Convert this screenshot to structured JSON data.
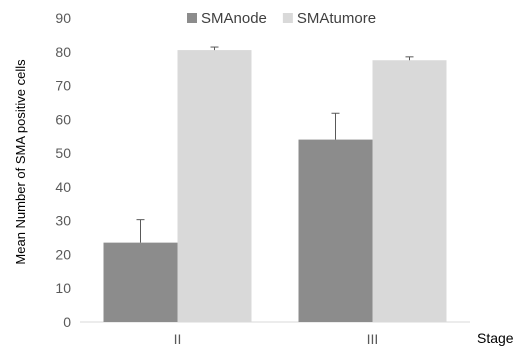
{
  "chart_data": {
    "type": "bar",
    "categories": [
      "II",
      "III"
    ],
    "series": [
      {
        "name": "SMAnode",
        "values": [
          23.5,
          54
        ],
        "errors": [
          6.8,
          7.8
        ],
        "color": "#8c8c8c"
      },
      {
        "name": "SMAtumore",
        "values": [
          80.5,
          77.5
        ],
        "errors": [
          0.9,
          1.0
        ],
        "color": "#d9d9d9"
      }
    ],
    "ylim": [
      0,
      90
    ],
    "yticks": [
      0,
      10,
      20,
      30,
      40,
      50,
      60,
      70,
      80,
      90
    ],
    "ylabel": "Mean Number of SMA positive cells",
    "xlabel": "Stage",
    "legend": "top",
    "grid": false,
    "axis_color": "#d9d9d9",
    "error_bar_color": "#595959"
  }
}
